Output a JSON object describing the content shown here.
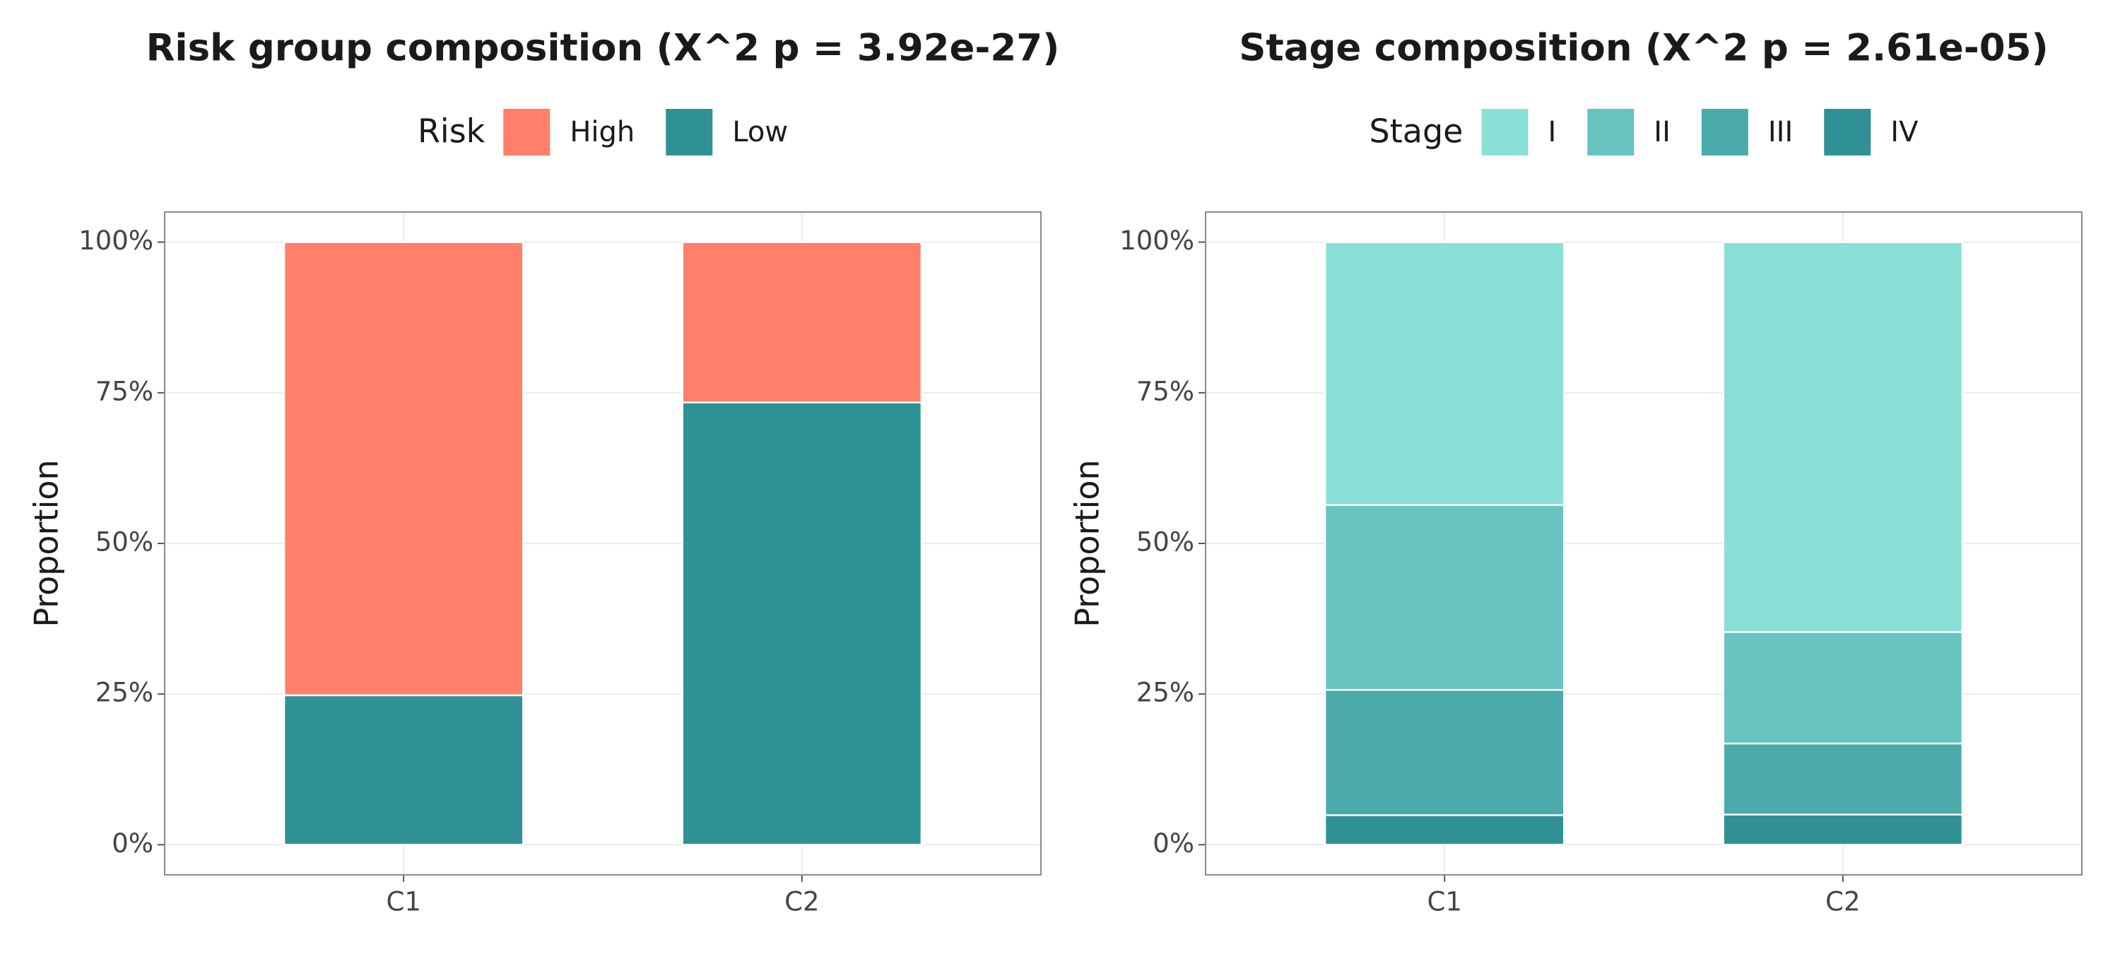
{
  "chart_data": [
    {
      "type": "bar",
      "stacked": true,
      "title": "Risk group composition (X^2 p = 3.92e-27)",
      "legend_title": "Risk",
      "ylabel": "Proportion",
      "categories": [
        "C1",
        "C2"
      ],
      "series": [
        {
          "name": "High",
          "color": "#ff7f6a",
          "values": [
            75.2,
            26.6
          ]
        },
        {
          "name": "Low",
          "color": "#2f9196",
          "values": [
            24.8,
            73.4
          ]
        }
      ],
      "ylim": [
        -5,
        105
      ],
      "yticks": [
        {
          "value": 0,
          "label": "0%"
        },
        {
          "value": 25,
          "label": "25%"
        },
        {
          "value": 50,
          "label": "50%"
        },
        {
          "value": 75,
          "label": "75%"
        },
        {
          "value": 100,
          "label": "100%"
        }
      ],
      "grid": true
    },
    {
      "type": "bar",
      "stacked": true,
      "title": "Stage composition (X^2 p = 2.61e-05)",
      "legend_title": "Stage",
      "ylabel": "Proportion",
      "categories": [
        "C1",
        "C2"
      ],
      "series": [
        {
          "name": "I",
          "color": "#8adfd6",
          "values": [
            43.6,
            64.7
          ]
        },
        {
          "name": "II",
          "color": "#68c3c1",
          "values": [
            30.7,
            18.5
          ]
        },
        {
          "name": "III",
          "color": "#4baaaa",
          "values": [
            20.8,
            11.8
          ]
        },
        {
          "name": "IV",
          "color": "#2f9196",
          "values": [
            4.9,
            5.0
          ]
        }
      ],
      "ylim": [
        -5,
        105
      ],
      "yticks": [
        {
          "value": 0,
          "label": "0%"
        },
        {
          "value": 25,
          "label": "25%"
        },
        {
          "value": 50,
          "label": "50%"
        },
        {
          "value": 75,
          "label": "75%"
        },
        {
          "value": 100,
          "label": "100%"
        }
      ],
      "grid": true
    }
  ]
}
